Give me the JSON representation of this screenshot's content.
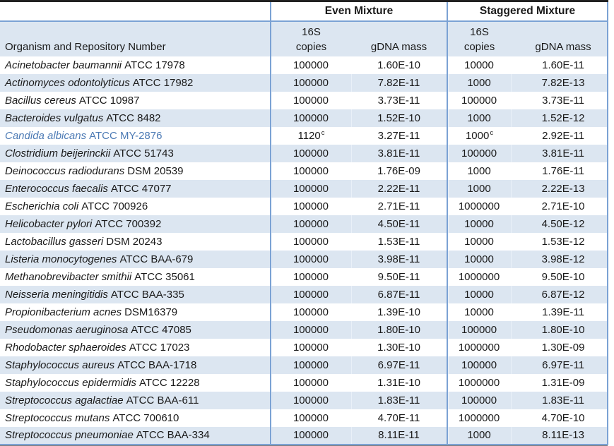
{
  "table": {
    "group_headers": {
      "even": "Even Mixture",
      "staggered": "Staggered Mixture"
    },
    "headers": {
      "organism": "Organism and Repository Number",
      "copies_top": "16S",
      "copies_bottom": "copies",
      "gdna": "gDNA mass"
    },
    "footnote_marker": "c",
    "colors": {
      "border_blue": "#7ba2d4",
      "band_fill": "#dce6f1",
      "top_border": "#212121",
      "highlight_text": "#4d7bb5"
    },
    "rows": [
      {
        "species": "Acinetobacter baumannii",
        "repo": "ATCC 17978",
        "even_copies": "100000",
        "even_gdna": "1.60E-10",
        "stag_copies": "10000",
        "stag_gdna": "1.60E-11"
      },
      {
        "species": "Actinomyces odontolyticus",
        "repo": "ATCC 17982",
        "even_copies": "100000",
        "even_gdna": "7.82E-11",
        "stag_copies": "1000",
        "stag_gdna": "7.82E-13"
      },
      {
        "species": "Bacillus cereus",
        "repo": "ATCC 10987",
        "even_copies": "100000",
        "even_gdna": "3.73E-11",
        "stag_copies": "100000",
        "stag_gdna": "3.73E-11"
      },
      {
        "species": "Bacteroides vulgatus",
        "repo": "ATCC 8482",
        "even_copies": "100000",
        "even_gdna": "1.52E-10",
        "stag_copies": "1000",
        "stag_gdna": "1.52E-12"
      },
      {
        "species": "Candida albicans",
        "repo": "ATCC MY-2876",
        "even_copies": "1120",
        "even_copies_sup": "c",
        "even_gdna": "3.27E-11",
        "stag_copies": "1000",
        "stag_copies_sup": "c",
        "stag_gdna": "2.92E-11",
        "highlight": true
      },
      {
        "species": "Clostridium beijerinckii",
        "repo": "ATCC 51743",
        "even_copies": "100000",
        "even_gdna": "3.81E-11",
        "stag_copies": "100000",
        "stag_gdna": "3.81E-11"
      },
      {
        "species": "Deinococcus radiodurans",
        "repo": "DSM 20539",
        "even_copies": "100000",
        "even_gdna": "1.76E-09",
        "stag_copies": "1000",
        "stag_gdna": "1.76E-11"
      },
      {
        "species": "Enterococcus faecalis",
        "repo": "ATCC 47077",
        "even_copies": "100000",
        "even_gdna": "2.22E-11",
        "stag_copies": "1000",
        "stag_gdna": "2.22E-13"
      },
      {
        "species": "Escherichia coli",
        "repo": "ATCC 700926",
        "even_copies": "100000",
        "even_gdna": "2.71E-11",
        "stag_copies": "1000000",
        "stag_gdna": "2.71E-10"
      },
      {
        "species": "Helicobacter pylori",
        "repo": "ATCC 700392",
        "even_copies": "100000",
        "even_gdna": "4.50E-11",
        "stag_copies": "10000",
        "stag_gdna": "4.50E-12"
      },
      {
        "species": "Lactobacillus gasseri",
        "repo": "DSM 20243",
        "even_copies": "100000",
        "even_gdna": "1.53E-11",
        "stag_copies": "10000",
        "stag_gdna": "1.53E-12"
      },
      {
        "species": "Listeria monocytogenes",
        "repo": "ATCC BAA-679",
        "even_copies": "100000",
        "even_gdna": "3.98E-11",
        "stag_copies": "10000",
        "stag_gdna": "3.98E-12"
      },
      {
        "species": "Methanobrevibacter smithii",
        "repo": "ATCC 35061",
        "even_copies": "100000",
        "even_gdna": "9.50E-11",
        "stag_copies": "1000000",
        "stag_gdna": "9.50E-10"
      },
      {
        "species": "Neisseria meningitidis",
        "repo": "ATCC BAA-335",
        "even_copies": "100000",
        "even_gdna": "6.87E-11",
        "stag_copies": "10000",
        "stag_gdna": "6.87E-12"
      },
      {
        "species": "Propionibacterium acnes",
        "repo": "DSM16379",
        "even_copies": "100000",
        "even_gdna": "1.39E-10",
        "stag_copies": "10000",
        "stag_gdna": "1.39E-11"
      },
      {
        "species": "Pseudomonas aeruginosa",
        "repo": "ATCC 47085",
        "even_copies": "100000",
        "even_gdna": "1.80E-10",
        "stag_copies": "100000",
        "stag_gdna": "1.80E-10"
      },
      {
        "species": "Rhodobacter sphaeroides",
        "repo": "ATCC 17023",
        "even_copies": "100000",
        "even_gdna": "1.30E-10",
        "stag_copies": "1000000",
        "stag_gdna": "1.30E-09"
      },
      {
        "species": "Staphylococcus aureus",
        "repo": "ATCC BAA-1718",
        "even_copies": "100000",
        "even_gdna": "6.97E-11",
        "stag_copies": "100000",
        "stag_gdna": "6.97E-11"
      },
      {
        "species": "Staphylococcus epidermidis",
        "repo": "ATCC 12228",
        "even_copies": "100000",
        "even_gdna": "1.31E-10",
        "stag_copies": "1000000",
        "stag_gdna": "1.31E-09"
      },
      {
        "species": "Streptococcus agalactiae",
        "repo": "ATCC BAA-611",
        "even_copies": "100000",
        "even_gdna": "1.83E-11",
        "stag_copies": "100000",
        "stag_gdna": "1.83E-11"
      },
      {
        "species": "Streptococcus mutans",
        "repo": "ATCC 700610",
        "even_copies": "100000",
        "even_gdna": "4.70E-11",
        "stag_copies": "1000000",
        "stag_gdna": "4.70E-10"
      },
      {
        "species": "Streptococcus pneumoniae",
        "repo": "ATCC BAA-334",
        "even_copies": "100000",
        "even_gdna": "8.11E-11",
        "stag_copies": "1000",
        "stag_gdna": "8.11E-13"
      }
    ]
  }
}
